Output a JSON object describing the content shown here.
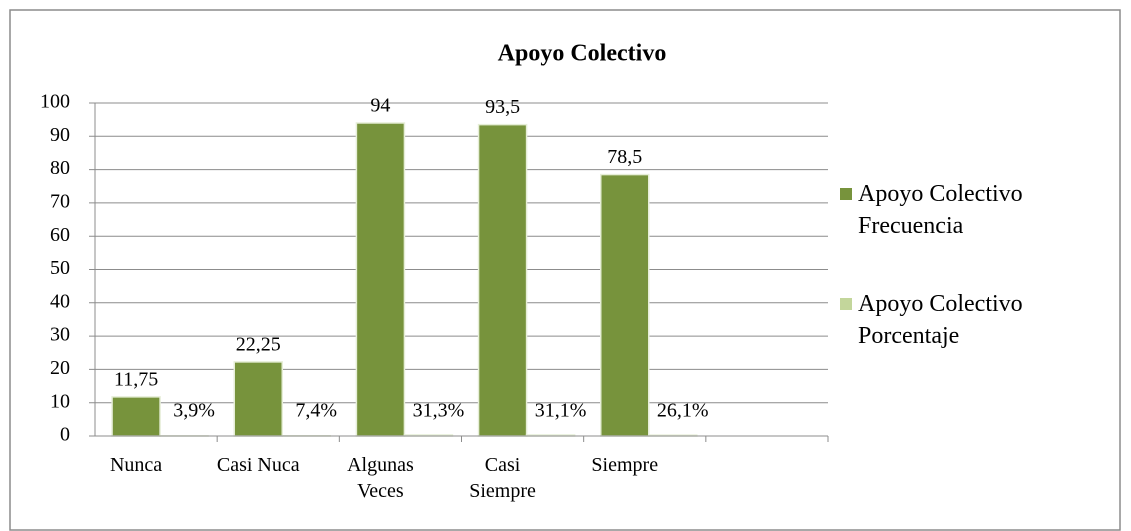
{
  "chart_data": {
    "type": "bar",
    "title": "Apoyo Colectivo",
    "categories": [
      "Nunca",
      "Casi Nuca",
      "Algunas Veces",
      "Casi Siempre",
      "Siempre",
      null
    ],
    "series": [
      {
        "name": "Apoyo Colectivo Frecuencia",
        "color": "#77933c",
        "values": [
          11.75,
          22.25,
          94,
          93.5,
          78.5,
          null
        ],
        "value_labels": [
          "11,75",
          "22,25",
          "94",
          "93,5",
          "78,5",
          null
        ]
      },
      {
        "name": "Apoyo Colectivo Porcentaje",
        "color": "#c3d69b",
        "values": [
          0.039,
          0.074,
          0.313,
          0.311,
          0.261,
          null
        ],
        "value_labels": [
          "3,9%",
          "7,4%",
          "31,3%",
          "31,1%",
          "26,1%",
          null
        ]
      }
    ],
    "ylim": [
      0,
      100
    ],
    "yticks": [
      0,
      10,
      20,
      30,
      40,
      50,
      60,
      70,
      80,
      90,
      100
    ],
    "grid": true,
    "legend": "right"
  }
}
